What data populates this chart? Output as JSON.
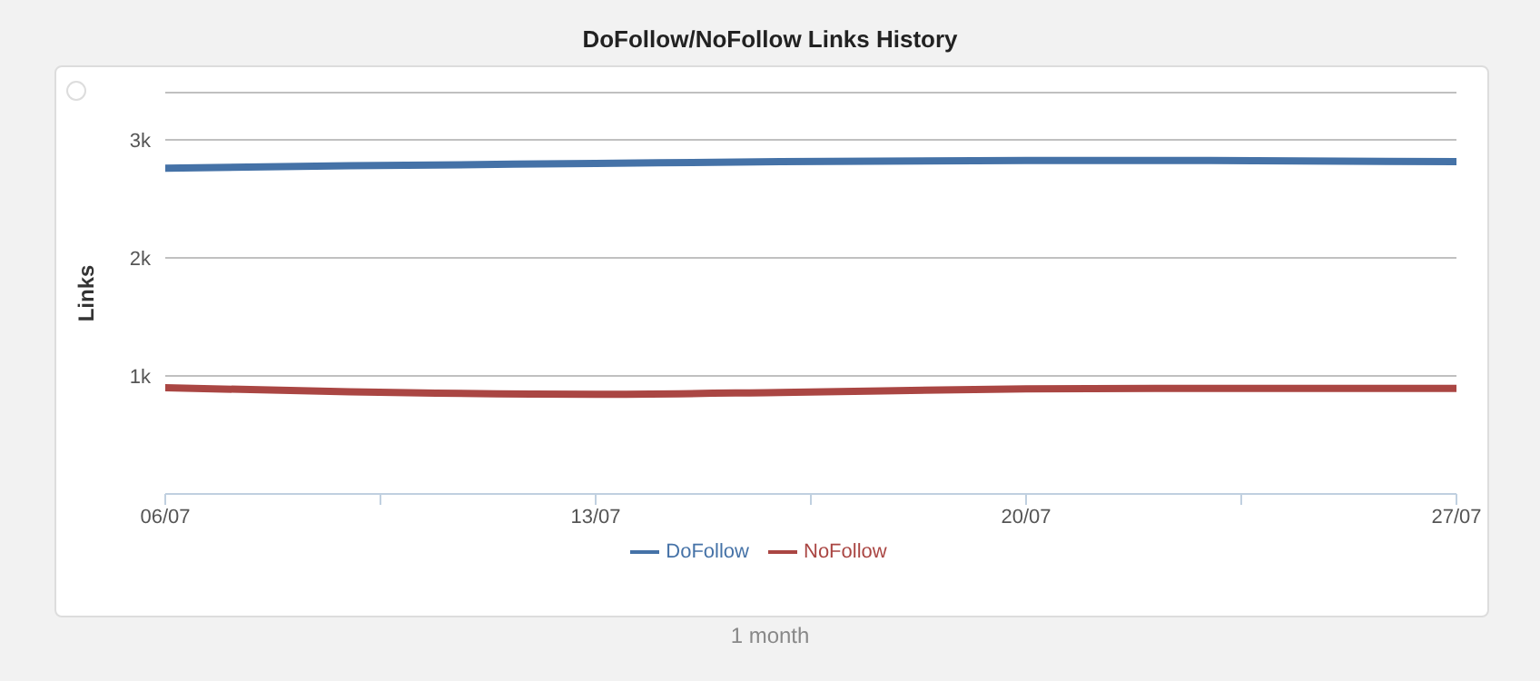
{
  "chart_data": {
    "type": "line",
    "title": "DoFollow/NoFollow Links History",
    "ylabel": "Links",
    "x": [
      "--07-06",
      "--07-09",
      "--07-13",
      "--07-16",
      "--07-20",
      "--07-23",
      "--07-27"
    ],
    "series": [
      {
        "name": "DoFollow",
        "color": "#4572a7",
        "values": [
          2760,
          2780,
          2800,
          2815,
          2825,
          2825,
          2815
        ]
      },
      {
        "name": "NoFollow",
        "color": "#aa4643",
        "values": [
          900,
          865,
          845,
          860,
          890,
          895,
          895
        ]
      }
    ],
    "xlim": [
      "--07-06",
      "--07-27"
    ],
    "xticks": [
      {
        "value": "--07-06",
        "label": "06/07"
      },
      {
        "value": "--07-09T12:00",
        "label": null
      },
      {
        "value": "--07-13",
        "label": "13/07"
      },
      {
        "value": "--07-16T12:00",
        "label": null
      },
      {
        "value": "--07-20",
        "label": "20/07"
      },
      {
        "value": "--07-23T12:00",
        "label": null
      },
      {
        "value": "--07-27",
        "label": "27/07"
      }
    ],
    "ylim": [
      0,
      3400
    ],
    "yticks": [
      {
        "value": 0,
        "label": null
      },
      {
        "value": 1000,
        "label": "1k"
      },
      {
        "value": 2000,
        "label": "2k"
      },
      {
        "value": 3000,
        "label": "3k"
      }
    ],
    "grid": "y",
    "legend": "bottom",
    "marker": "none",
    "line_style": "solid",
    "annotations": [
      "1 month"
    ]
  }
}
